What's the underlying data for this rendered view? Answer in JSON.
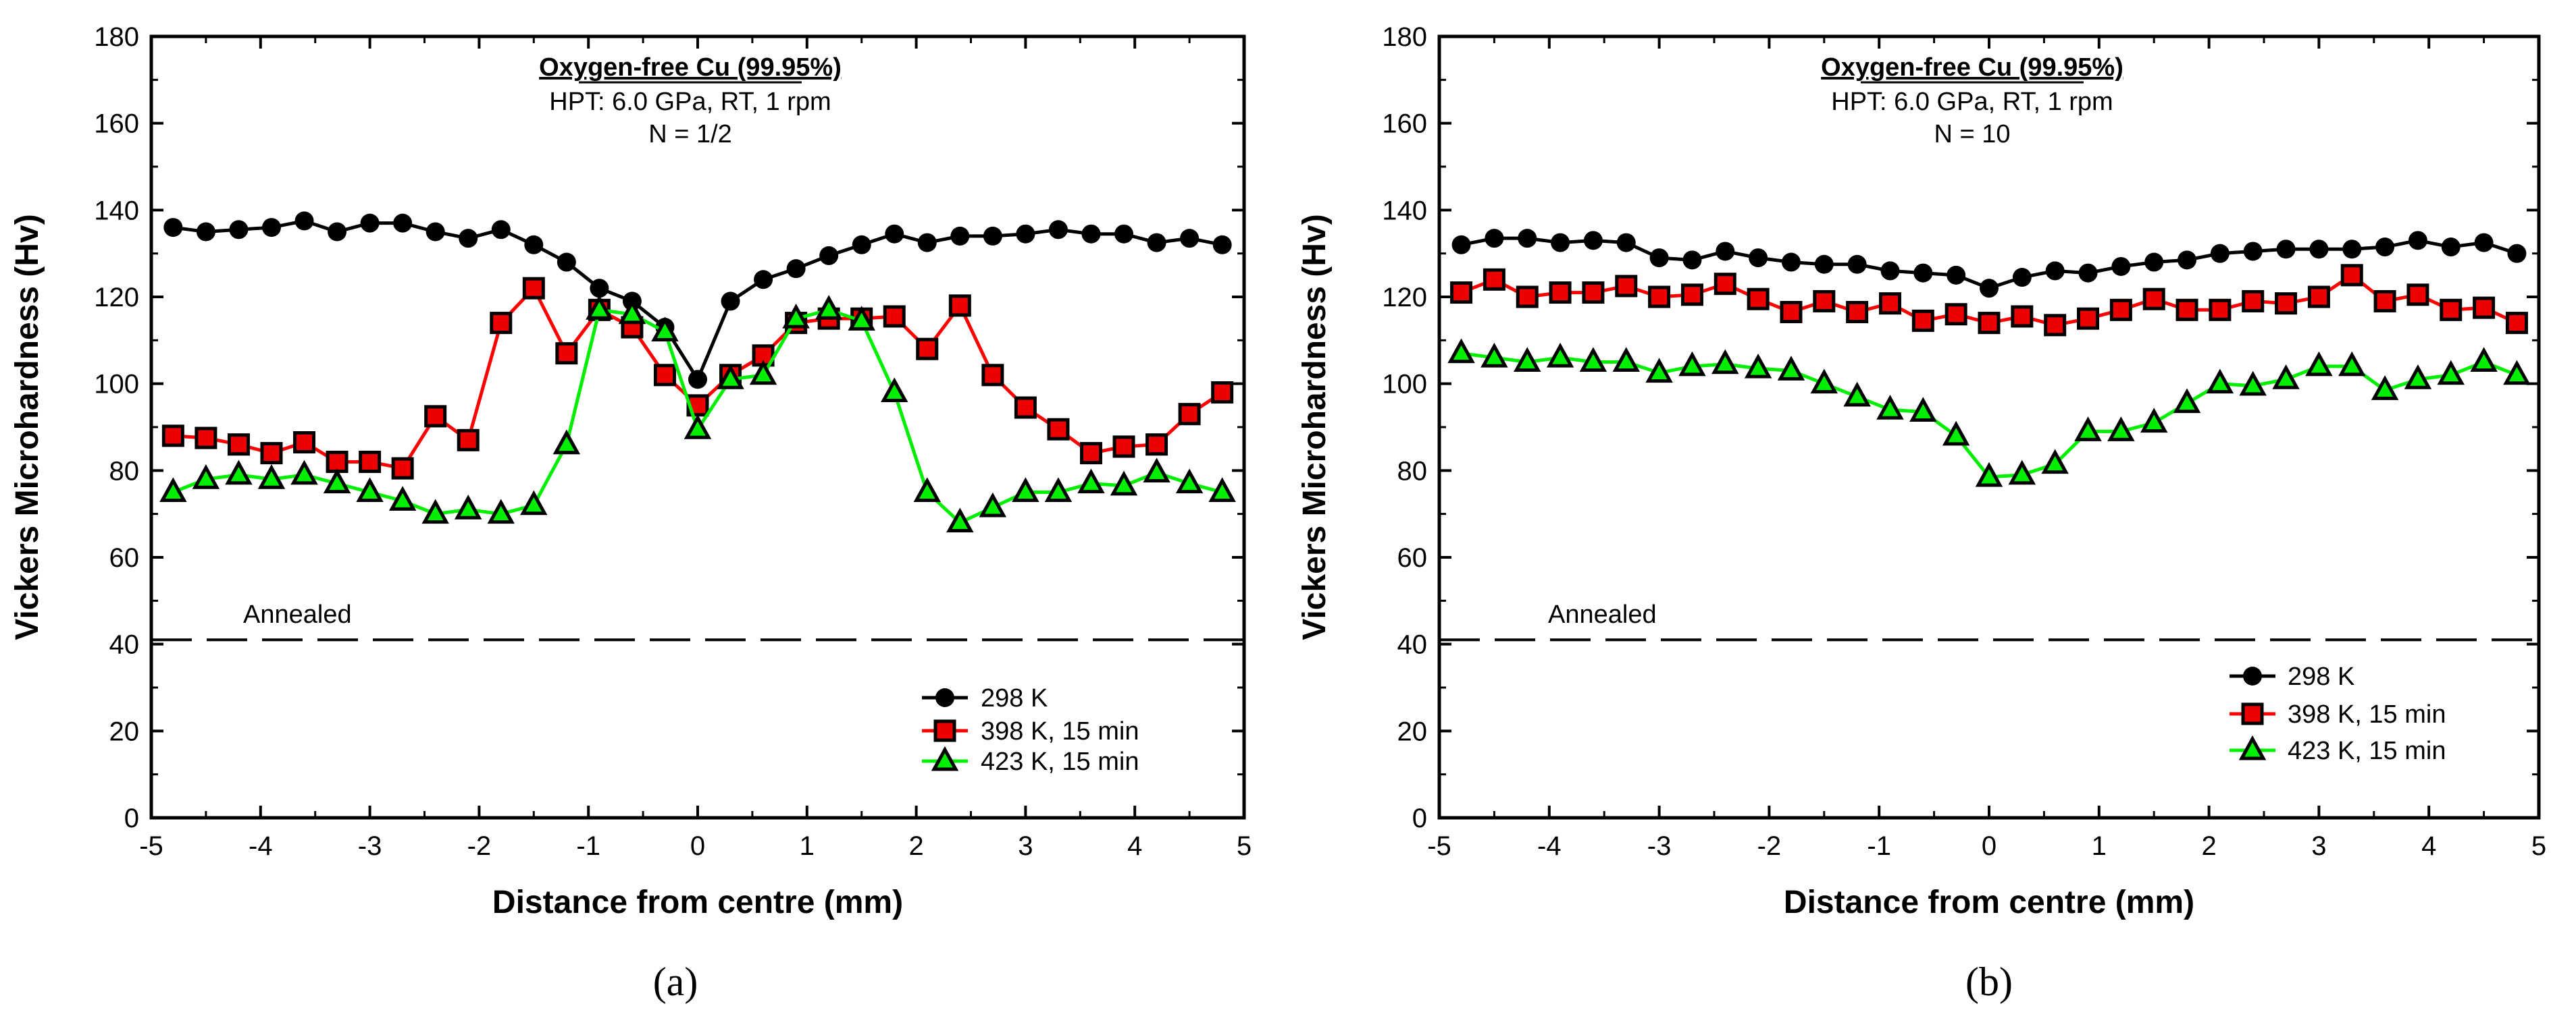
{
  "chart_data": [
    {
      "type": "line",
      "panel_label": "(a)",
      "title": "Oxygen-free Cu (99.95%)",
      "subtitle_lines": [
        "HPT: 6.0 GPa, RT, 1 rpm",
        "N = 1/2"
      ],
      "xlabel": "Distance from centre (mm)",
      "ylabel": "Vickers Microhardness (Hv)",
      "xlim": [
        -5,
        5
      ],
      "ylim": [
        0,
        180
      ],
      "xticks": [
        -5,
        -4,
        -3,
        -2,
        -1,
        0,
        1,
        2,
        3,
        4,
        5
      ],
      "yticks": [
        0,
        20,
        40,
        60,
        80,
        100,
        120,
        140,
        160,
        180
      ],
      "grid": false,
      "legend_position": "bottom-right",
      "x": [
        -4.8,
        -4.5,
        -4.2,
        -3.9,
        -3.6,
        -3.3,
        -3.0,
        -2.7,
        -2.4,
        -2.1,
        -1.8,
        -1.5,
        -1.2,
        -0.9,
        -0.6,
        -0.3,
        0,
        0.3,
        0.6,
        0.9,
        1.2,
        1.5,
        1.8,
        2.1,
        2.4,
        2.7,
        3.0,
        3.3,
        3.6,
        3.9,
        4.2,
        4.5,
        4.8
      ],
      "series": [
        {
          "name": "298 K",
          "marker": "circle",
          "color": "#000000",
          "fill": "#000000",
          "values": [
            136,
            135,
            135.5,
            136,
            137.5,
            135,
            137,
            137,
            135,
            133.5,
            135.5,
            132,
            128,
            122,
            119,
            113,
            101,
            119,
            124,
            126.5,
            129.5,
            132,
            134.5,
            132.5,
            134,
            134,
            134.5,
            135.5,
            134.5,
            134.5,
            132.5,
            133.5,
            132
          ]
        },
        {
          "name": "398 K, 15 min",
          "marker": "square",
          "color": "#ff0000",
          "fill": "#ee0000",
          "values": [
            88,
            87.5,
            86,
            84,
            86.5,
            82,
            82,
            80.5,
            92.5,
            87,
            114,
            122,
            107,
            117,
            113,
            102,
            95,
            102,
            106.5,
            114,
            115,
            115,
            115.5,
            108,
            118,
            102,
            94.5,
            89.5,
            84,
            85.5,
            86,
            93,
            98
          ]
        },
        {
          "name": "423 K, 15 min",
          "marker": "triangle",
          "color": "#00ee00",
          "fill": "#00ee00",
          "values": [
            75,
            78,
            79,
            78,
            79,
            77,
            75,
            73,
            70,
            71,
            70,
            72,
            86,
            117,
            116,
            112,
            89.5,
            101,
            102,
            115,
            117,
            114.5,
            98,
            75,
            68,
            71.5,
            75,
            75,
            77,
            76.5,
            79.5,
            77,
            75
          ]
        }
      ],
      "reference_line": {
        "label": "Annealed",
        "value": 41,
        "style": "dashed"
      }
    },
    {
      "type": "line",
      "panel_label": "(b)",
      "title": "Oxygen-free Cu (99.95%)",
      "subtitle_lines": [
        "HPT: 6.0 GPa, RT, 1 rpm",
        "N = 10"
      ],
      "xlabel": "Distance from centre (mm)",
      "ylabel": "Vickers Microhardness (Hv)",
      "xlim": [
        -5,
        5
      ],
      "ylim": [
        0,
        180
      ],
      "xticks": [
        -5,
        -4,
        -3,
        -2,
        -1,
        0,
        1,
        2,
        3,
        4,
        5
      ],
      "yticks": [
        0,
        20,
        40,
        60,
        80,
        100,
        120,
        140,
        160,
        180
      ],
      "grid": false,
      "legend_position": "bottom-right",
      "x": [
        -4.8,
        -4.5,
        -4.2,
        -3.9,
        -3.6,
        -3.3,
        -3.0,
        -2.7,
        -2.4,
        -2.1,
        -1.8,
        -1.5,
        -1.2,
        -0.9,
        -0.6,
        -0.3,
        0,
        0.3,
        0.6,
        0.9,
        1.2,
        1.5,
        1.8,
        2.1,
        2.4,
        2.7,
        3.0,
        3.3,
        3.6,
        3.9,
        4.2,
        4.5,
        4.8
      ],
      "series": [
        {
          "name": "298 K",
          "marker": "circle",
          "color": "#000000",
          "fill": "#000000",
          "values": [
            132,
            133.5,
            133.5,
            132.5,
            133,
            132.5,
            129,
            128.5,
            130.5,
            129,
            128,
            127.5,
            127.5,
            126,
            125.5,
            125,
            122,
            124.5,
            126,
            125.5,
            127,
            128,
            128.5,
            130,
            130.5,
            131,
            131,
            131,
            131.5,
            133,
            131.5,
            132.5,
            130
          ]
        },
        {
          "name": "398 K, 15 min",
          "marker": "square",
          "color": "#ff0000",
          "fill": "#ee0000",
          "values": [
            121,
            124,
            120,
            121,
            121,
            122.5,
            120,
            120.5,
            123,
            119.5,
            116.5,
            119,
            116.5,
            118.5,
            114.5,
            116,
            114,
            115.5,
            113.5,
            115,
            117,
            119.5,
            117,
            117,
            119,
            118.5,
            120,
            125,
            119,
            120.5,
            117,
            117.5,
            114
          ]
        },
        {
          "name": "423 K, 15 min",
          "marker": "triangle",
          "color": "#00ee00",
          "fill": "#00ee00",
          "values": [
            107,
            106,
            105,
            106,
            105,
            105,
            102.5,
            104,
            104.5,
            103.5,
            103,
            100,
            97,
            94,
            93.5,
            88,
            78.5,
            79,
            81.5,
            89,
            89,
            91,
            95.5,
            100,
            99.5,
            101,
            104,
            104,
            98.5,
            101,
            102,
            105,
            102
          ]
        }
      ],
      "reference_line": {
        "label": "Annealed",
        "value": 41,
        "style": "dashed"
      }
    }
  ]
}
